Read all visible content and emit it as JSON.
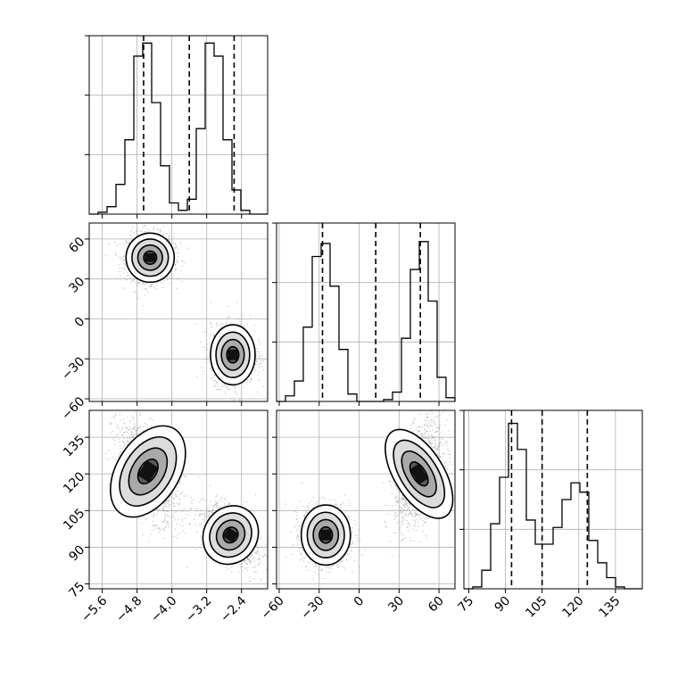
{
  "chart_data": {
    "type": "corner",
    "grid": true,
    "colors": {
      "line": "#000000",
      "grid": "#b0b0b0",
      "points": "#808080"
    },
    "params": [
      {
        "range": [
          -5.9,
          -1.8
        ],
        "ticks": [
          -5.6,
          -4.8,
          -4.0,
          -3.2,
          -2.4
        ],
        "tick_labels": [
          "−5.6",
          "−4.8",
          "−4.0",
          "−3.2",
          "−2.4"
        ]
      },
      {
        "range": [
          -62,
          72
        ],
        "ticks": [
          -60,
          -30,
          0,
          30,
          60
        ],
        "tick_labels": [
          "−60",
          "−30",
          "0",
          "30",
          "60"
        ]
      },
      {
        "range": [
          73,
          146
        ],
        "ticks": [
          75,
          90,
          105,
          120,
          135
        ],
        "tick_labels": [
          "75",
          "90",
          "105",
          "120",
          "135"
        ]
      }
    ],
    "histograms": [
      {
        "param": 0,
        "bin_edges": [
          -5.9,
          -5.695,
          -5.49,
          -5.285,
          -5.08,
          -4.875,
          -4.67,
          -4.465,
          -4.26,
          -4.055,
          -3.85,
          -3.645,
          -3.44,
          -3.235,
          -3.03,
          -2.825,
          -2.62,
          -2.415,
          -2.21,
          -2.005,
          -1.8
        ],
        "counts": [
          0,
          1,
          4,
          16,
          40,
          85,
          92,
          60,
          26,
          6,
          2,
          8,
          46,
          92,
          85,
          40,
          13,
          2,
          0,
          0
        ],
        "ymax": 96,
        "quantiles": [
          -4.65,
          -3.6,
          -2.57
        ],
        "yticks": [
          32,
          64,
          96
        ]
      },
      {
        "param": 1,
        "bin_edges": [
          -62,
          -55.3,
          -48.6,
          -41.9,
          -35.2,
          -28.5,
          -21.8,
          -15.1,
          -8.4,
          -1.7,
          5.0,
          11.7,
          18.4,
          25.1,
          31.8,
          38.5,
          45.2,
          51.9,
          58.6,
          65.3,
          72
        ],
        "counts": [
          0,
          3,
          11,
          40,
          78,
          85,
          62,
          28,
          4,
          0,
          0,
          0,
          1,
          5,
          34,
          71,
          86,
          54,
          13,
          2
        ],
        "ymax": 96,
        "quantiles": [
          -27.5,
          12.5,
          46.0
        ],
        "yticks": [
          32,
          64,
          96
        ]
      },
      {
        "param": 2,
        "bin_edges": [
          73,
          76.65,
          80.3,
          83.95,
          87.6,
          91.25,
          94.9,
          98.55,
          102.2,
          105.85,
          109.5,
          113.15,
          116.8,
          120.45,
          124.1,
          127.75,
          131.4,
          135.05,
          138.7,
          142.35,
          146
        ],
        "counts": [
          0,
          1,
          10,
          35,
          60,
          89,
          75,
          37,
          24,
          24,
          33,
          48,
          57,
          52,
          26,
          14,
          6,
          1,
          0,
          0
        ],
        "ymax": 96,
        "quantiles": [
          92.5,
          105.0,
          123.5
        ],
        "yticks": [
          32,
          64,
          96
        ]
      }
    ],
    "scatter_panels": [
      {
        "x_param": 0,
        "y_param": 1,
        "modes": [
          {
            "mx": -4.5,
            "my": 46,
            "sx": 0.27,
            "sy": 9,
            "rho": 0
          },
          {
            "mx": -2.6,
            "my": -27,
            "sx": 0.25,
            "sy": 11,
            "rho": 0
          }
        ]
      },
      {
        "x_param": 0,
        "y_param": 2,
        "modes": [
          {
            "mx": -4.55,
            "my": 121,
            "sx": 0.35,
            "sy": 10,
            "rho": -0.55
          },
          {
            "mx": -2.65,
            "my": 95,
            "sx": 0.3,
            "sy": 6,
            "rho": -0.5
          }
        ]
      },
      {
        "x_param": 1,
        "y_param": 2,
        "modes": [
          {
            "mx": -25,
            "my": 95,
            "sx": 9,
            "sy": 6,
            "rho": 0
          },
          {
            "mx": 45,
            "my": 120,
            "sx": 9,
            "sy": 10,
            "rho": 0.4
          }
        ]
      }
    ]
  }
}
